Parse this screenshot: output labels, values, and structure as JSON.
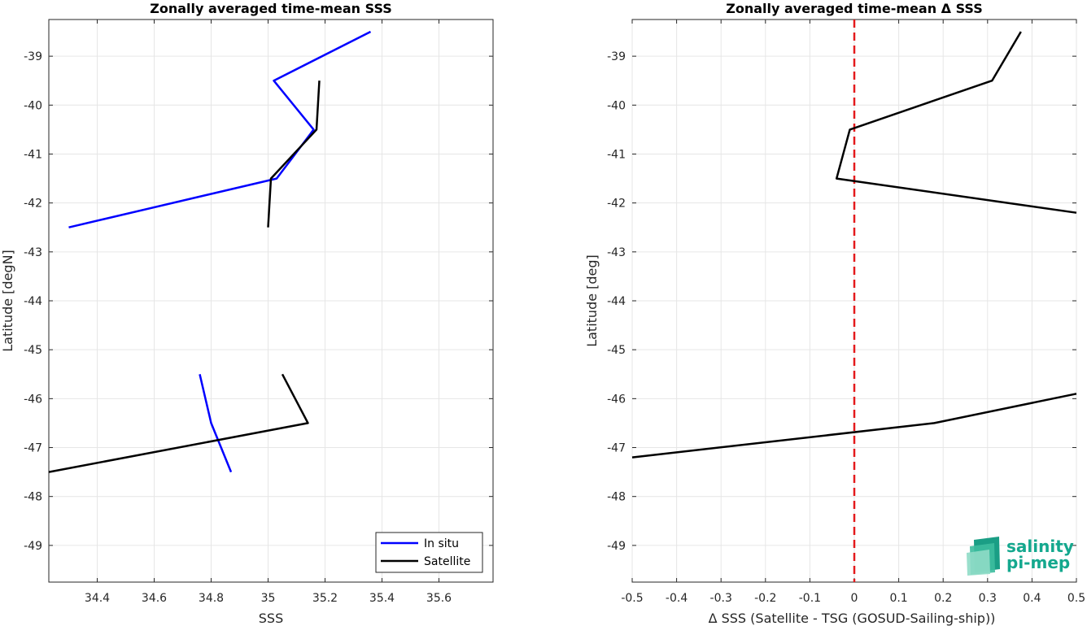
{
  "chart_data": [
    {
      "type": "line",
      "title": "Zonally averaged time-mean SSS",
      "xlabel": "SSS",
      "ylabel": "Latitude [degN]",
      "xlim": [
        34.23,
        35.79
      ],
      "ylim": [
        -49.75,
        -38.25
      ],
      "xticks": [
        34.4,
        34.6,
        34.8,
        35,
        35.2,
        35.4,
        35.6
      ],
      "xtick_labels": [
        "34.4",
        "34.6",
        "34.8",
        "35",
        "35.2",
        "35.4",
        "35.6"
      ],
      "yticks": [
        -39,
        -40,
        -41,
        -42,
        -43,
        -44,
        -45,
        -46,
        -47,
        -48,
        -49
      ],
      "ytick_labels": [
        "-39",
        "-40",
        "-41",
        "-42",
        "-43",
        "-44",
        "-45",
        "-46",
        "-47",
        "-48",
        "-49"
      ],
      "grid": true,
      "legend_position": "bottom-right",
      "series": [
        {
          "name": "In situ",
          "color": "#0000ff",
          "segments": [
            [
              [
                35.36,
                -38.5
              ],
              [
                35.02,
                -39.5
              ],
              [
                35.16,
                -40.5
              ],
              [
                35.03,
                -41.5
              ],
              [
                34.3,
                -42.5
              ]
            ],
            [
              [
                34.76,
                -45.5
              ],
              [
                34.8,
                -46.5
              ],
              [
                34.87,
                -47.5
              ]
            ]
          ]
        },
        {
          "name": "Satellite",
          "color": "#000000",
          "segments": [
            [
              [
                35.18,
                -39.5
              ],
              [
                35.17,
                -40.5
              ],
              [
                35.01,
                -41.5
              ],
              [
                35.0,
                -42.5
              ]
            ],
            [
              [
                35.05,
                -45.5
              ],
              [
                35.14,
                -46.5
              ],
              [
                34.21,
                -47.5
              ]
            ]
          ]
        }
      ]
    },
    {
      "type": "line",
      "title": "Zonally averaged time-mean Δ SSS",
      "xlabel": "Δ SSS (Satellite - TSG (GOSUD-Sailing-ship))",
      "ylabel": "Latitude [deg]",
      "xlim": [
        -0.5,
        0.5
      ],
      "ylim": [
        -49.75,
        -38.25
      ],
      "xticks": [
        -0.5,
        -0.4,
        -0.3,
        -0.2,
        -0.1,
        0,
        0.1,
        0.2,
        0.3,
        0.4,
        0.5
      ],
      "xtick_labels": [
        "-0.5",
        "-0.4",
        "-0.3",
        "-0.2",
        "-0.1",
        "0",
        "0.1",
        "0.2",
        "0.3",
        "0.4",
        "0.5"
      ],
      "yticks": [
        -39,
        -40,
        -41,
        -42,
        -43,
        -44,
        -45,
        -46,
        -47,
        -48,
        -49
      ],
      "ytick_labels": [
        "-39",
        "-40",
        "-41",
        "-42",
        "-43",
        "-44",
        "-45",
        "-46",
        "-47",
        "-48",
        "-49"
      ],
      "grid": true,
      "reference_line": {
        "x": 0,
        "color": "#e41a1c",
        "style": "dashed"
      },
      "series": [
        {
          "color": "#000000",
          "segments": [
            [
              [
                0.375,
                -38.5
              ],
              [
                0.31,
                -39.5
              ],
              [
                -0.01,
                -40.5
              ],
              [
                -0.04,
                -41.5
              ],
              [
                0.5,
                -42.2
              ]
            ],
            [
              [
                0.5,
                -45.9
              ],
              [
                0.18,
                -46.5
              ],
              [
                -0.5,
                -47.2
              ]
            ]
          ]
        }
      ]
    }
  ],
  "logo": {
    "line1": "salinity",
    "line2": "pi-mep",
    "color": "#14a88e"
  }
}
